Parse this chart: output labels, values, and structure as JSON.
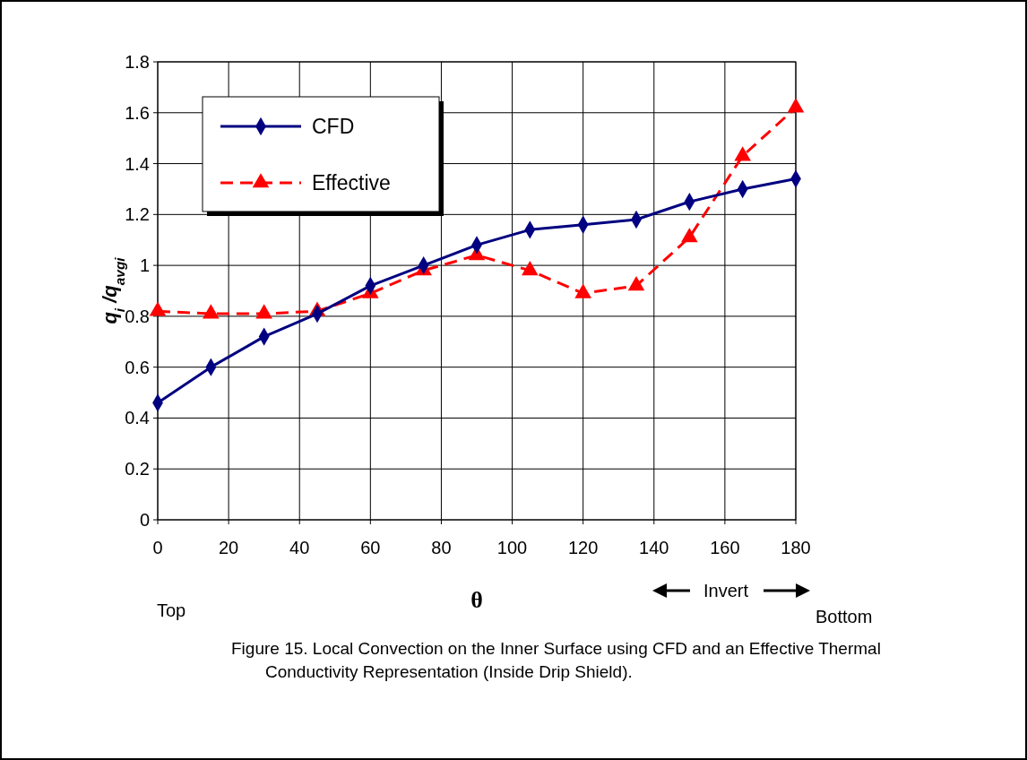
{
  "chart_data": {
    "type": "line",
    "xlabel": "θ",
    "ylabel": "q$_{i}$ /q$_{avgi}$",
    "x": [
      0,
      15,
      30,
      45,
      60,
      75,
      90,
      105,
      120,
      135,
      150,
      165,
      180
    ],
    "series": [
      {
        "name": "CFD",
        "color": "#000080",
        "marker": "diamond",
        "line_style": "solid",
        "values": [
          0.46,
          0.6,
          0.72,
          0.81,
          0.92,
          1.0,
          1.08,
          1.14,
          1.16,
          1.18,
          1.25,
          1.3,
          1.34
        ]
      },
      {
        "name": "Effective",
        "color": "#ff0000",
        "marker": "triangle",
        "line_style": "dashed",
        "values": [
          0.82,
          0.81,
          0.81,
          0.82,
          0.89,
          0.98,
          1.04,
          0.98,
          0.89,
          0.92,
          1.11,
          1.43,
          1.62
        ]
      }
    ],
    "xlim": [
      0,
      180
    ],
    "xticks": [
      0,
      20,
      40,
      60,
      80,
      100,
      120,
      140,
      160,
      180
    ],
    "ylim": [
      0,
      1.8
    ],
    "yticks": [
      0,
      0.2,
      0.4,
      0.6,
      0.8,
      1,
      1.2,
      1.4,
      1.6,
      1.8
    ],
    "grid": true,
    "legend": "top left",
    "annotations": [
      "Top",
      "Bottom",
      "Invert",
      "Figure 15. Local Convection on the Inner Surface using CFD and an Effective Thermal Conductivity Representation (Inside Drip Shield)."
    ]
  }
}
